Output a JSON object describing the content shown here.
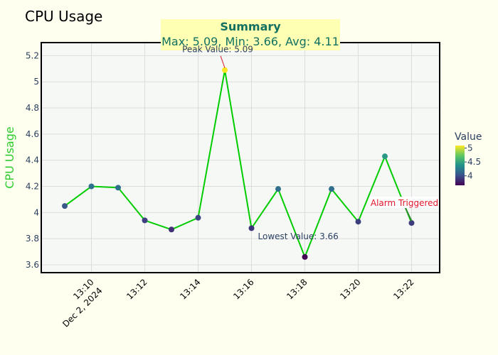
{
  "chart_data": {
    "type": "line",
    "title": "CPU Usage",
    "xlabel": "",
    "ylabel": "CPU Usage",
    "x": [
      "13:09",
      "13:10",
      "13:11",
      "13:12",
      "13:13",
      "13:14",
      "13:15",
      "13:16",
      "13:17",
      "13:18",
      "13:19",
      "13:20",
      "13:21",
      "13:22"
    ],
    "values": [
      4.05,
      4.2,
      4.19,
      3.94,
      3.87,
      3.96,
      5.09,
      3.88,
      4.18,
      3.66,
      4.18,
      3.93,
      4.43,
      3.92
    ],
    "x_ticks": [
      "13:10",
      "13:12",
      "13:14",
      "13:16",
      "13:18",
      "13:20",
      "13:22"
    ],
    "x_date_label": "Dec 2, 2024",
    "y_ticks": [
      "3.6",
      "3.8",
      "4",
      "4.2",
      "4.4",
      "4.6",
      "4.8",
      "5",
      "5.2"
    ],
    "ylim": [
      3.54,
      5.3
    ],
    "grid": true,
    "line_color": "#00cc00",
    "colorscale": "Viridis",
    "colorbar": {
      "title": "Value",
      "ticks": [
        "4",
        "4.5",
        "5"
      ],
      "range": [
        3.66,
        5.09
      ]
    },
    "summary": {
      "title": "Summary",
      "text": "Max: 5.09, Min: 3.66, Avg: 4.11",
      "bg_color": "#ffffb3"
    },
    "annotations": {
      "peak": "Peak Value: 5.09",
      "lowest": "Lowest Value: 3.66",
      "alarm": "Alarm Triggered"
    }
  }
}
